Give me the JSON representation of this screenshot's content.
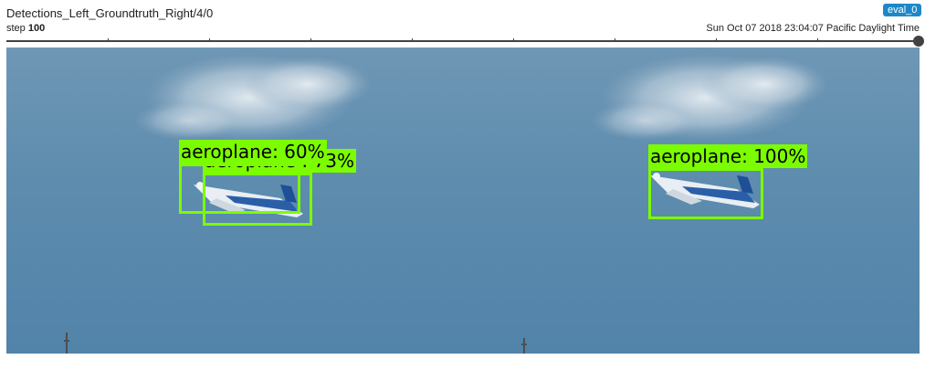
{
  "header": {
    "title": "Detections_Left_Groundtruth_Right/4/0",
    "run_badge": "eval_0",
    "step_label": "step",
    "step_value": "100",
    "timestamp": "Sun Oct 07 2018 23:04:07 Pacific Daylight Time"
  },
  "slider": {
    "value_fraction": 1.0
  },
  "image": {
    "left_panel": {
      "detections": [
        {
          "label": "aeroplane : 73%"
        },
        {
          "label": "aeroplane: 60%"
        }
      ]
    },
    "right_panel": {
      "detections": [
        {
          "label": "aeroplane: 100%"
        }
      ]
    }
  },
  "colors": {
    "box": "#7cfc00",
    "badge": "#1e88c7",
    "sky": "#5f8eae"
  }
}
